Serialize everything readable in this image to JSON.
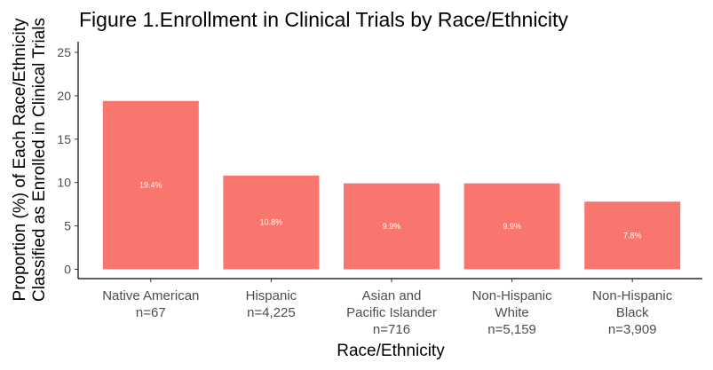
{
  "chart_data": {
    "type": "bar",
    "title": "Figure 1.Enrollment in Clinical Trials by Race/Ethnicity",
    "xlabel": "Race/Ethnicity",
    "ylabel_lines": [
      "Proportion (%) of Each Race/Ethnicity",
      "Classified as Enrolled in Clinical Trials"
    ],
    "ylim": [
      0,
      25
    ],
    "yticks": [
      0,
      5,
      10,
      15,
      20,
      25
    ],
    "grid": false,
    "bar_color": "#F8766D",
    "categories": [
      {
        "lines": [
          "Native American",
          "n=67"
        ]
      },
      {
        "lines": [
          "Hispanic",
          "n=4,225"
        ]
      },
      {
        "lines": [
          "Asian and",
          "Pacific Islander",
          "n=716"
        ]
      },
      {
        "lines": [
          "Non-Hispanic",
          "White",
          "n=5,159"
        ]
      },
      {
        "lines": [
          "Non-Hispanic",
          "Black",
          "n=3,909"
        ]
      }
    ],
    "values": [
      19.4,
      10.8,
      9.9,
      9.9,
      7.8
    ],
    "value_labels": [
      "19.4%",
      "10.8%",
      "9.9%",
      "9.9%",
      "7.8%"
    ]
  }
}
